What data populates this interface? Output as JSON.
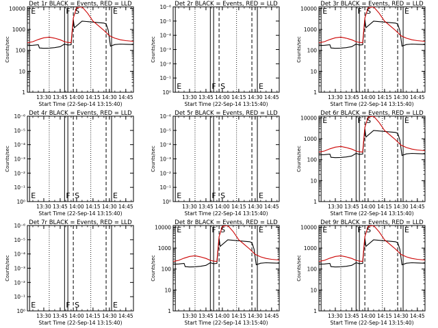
{
  "figure": {
    "panels": [
      {
        "id": "det1",
        "title": "Det 1r BLACK = Events, RED = LLD",
        "has_data": true
      },
      {
        "id": "det2",
        "title": "Det 2r BLACK = Events, RED = LLD",
        "has_data": false
      },
      {
        "id": "det3",
        "title": "Det 3r BLACK = Events, RED = LLD",
        "has_data": true
      },
      {
        "id": "det4",
        "title": "Det 4r BLACK = Events, RED = LLD",
        "has_data": false
      },
      {
        "id": "det5",
        "title": "Det 5r BLACK = Events, RED = LLD",
        "has_data": false
      },
      {
        "id": "det6",
        "title": "Det 6r BLACK = Events, RED = LLD",
        "has_data": true
      },
      {
        "id": "det7",
        "title": "Det 7r BLACK = Events, RED = LLD",
        "has_data": false
      },
      {
        "id": "det8",
        "title": "Det 8r BLACK = Events, RED = LLD",
        "has_data": true
      },
      {
        "id": "det9",
        "title": "Det 9r BLACK = Events, RED = LLD",
        "has_data": true
      }
    ]
  },
  "chart_data": {
    "type": "line",
    "panel_layout": "3x3 grid",
    "xlabel": "Start Time (22-Sep-14 13:15:40)",
    "ylabel": "Counts/sec",
    "x_ticks": [
      "13:30",
      "13:45",
      "14:00",
      "14:15",
      "14:30",
      "14:45"
    ],
    "x_range": [
      "13:15",
      "14:52"
    ],
    "y_scale": "log",
    "ylim": [
      1,
      12000
    ],
    "y_ticks": [
      "1",
      "10",
      "100",
      "1000",
      "10000"
    ],
    "y_ticks_empty": [
      "10⁰",
      "10⁻¹",
      "10⁻²",
      "10⁻³",
      "10⁻⁴",
      "10⁻⁵",
      "10⁻⁶"
    ],
    "markers": [
      {
        "label": "E",
        "time": "13:17",
        "style": "solid"
      },
      {
        "label": "F",
        "time": "13:49",
        "style": "solid"
      },
      {
        "label": "",
        "time": "13:52",
        "style": "solid"
      },
      {
        "label": "S",
        "time": "13:57",
        "style": "dashed"
      },
      {
        "label": "",
        "time": "14:27",
        "style": "dashed"
      },
      {
        "label": "E",
        "time": "14:32",
        "style": "solid"
      }
    ],
    "dotted_lines": [
      "13:35",
      "14:13"
    ],
    "series": [
      {
        "name": "Events",
        "color": "#000000",
        "x": [
          "13:15",
          "13:20",
          "13:25",
          "13:26",
          "13:30",
          "13:35",
          "13:40",
          "13:45",
          "13:49",
          "13:52",
          "13:55",
          "13:57",
          "13:58",
          "14:05",
          "14:25",
          "14:27",
          "14:29",
          "14:31",
          "14:35",
          "14:40",
          "14:45",
          "14:52"
        ],
        "values": [
          170,
          175,
          185,
          130,
          125,
          128,
          135,
          150,
          200,
          180,
          185,
          3000,
          1200,
          2500,
          2000,
          1800,
          900,
          160,
          190,
          200,
          195,
          190
        ]
      },
      {
        "name": "LLD",
        "color": "#cc0000",
        "x": [
          "13:15",
          "13:20",
          "13:25",
          "13:30",
          "13:35",
          "13:40",
          "13:45",
          "13:49",
          "13:52",
          "13:55",
          "13:57",
          "14:00",
          "14:05",
          "14:10",
          "14:15",
          "14:20",
          "14:25",
          "14:30",
          "14:35",
          "14:40",
          "14:45",
          "14:52"
        ],
        "values": [
          230,
          260,
          330,
          400,
          430,
          380,
          320,
          260,
          240,
          230,
          3500,
          11000,
          12000,
          6000,
          2500,
          1500,
          900,
          500,
          380,
          320,
          290,
          270
        ]
      }
    ]
  }
}
